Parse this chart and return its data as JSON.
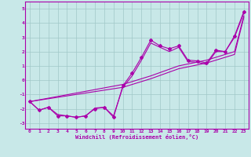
{
  "xlabel": "Windchill (Refroidissement éolien,°C)",
  "bg_color": "#c8e8e8",
  "grid_color": "#a0c8c8",
  "line_color": "#aa00aa",
  "xlim": [
    -0.5,
    23.5
  ],
  "ylim": [
    -3.4,
    5.5
  ],
  "yticks": [
    -3,
    -2,
    -1,
    0,
    1,
    2,
    3,
    4,
    5
  ],
  "xticks": [
    0,
    1,
    2,
    3,
    4,
    5,
    6,
    7,
    8,
    9,
    10,
    11,
    12,
    13,
    14,
    15,
    16,
    17,
    18,
    19,
    20,
    21,
    22,
    23
  ],
  "series": [
    {
      "x": [
        0,
        1,
        2,
        3,
        4,
        5,
        6,
        7,
        8,
        9,
        10,
        11,
        12,
        13,
        14,
        15,
        16,
        17,
        18,
        19,
        20,
        21,
        22,
        23
      ],
      "y": [
        -1.5,
        -2.1,
        -1.9,
        -2.5,
        -2.5,
        -2.6,
        -2.5,
        -2.0,
        -1.9,
        -2.6,
        -0.4,
        0.5,
        1.6,
        2.8,
        2.4,
        2.2,
        2.4,
        1.4,
        1.35,
        1.2,
        2.1,
        2.0,
        3.1,
        4.8
      ],
      "has_markers": true
    },
    {
      "x": [
        0,
        1,
        2,
        3,
        4,
        5,
        6,
        7,
        8,
        9,
        10,
        11,
        12,
        13,
        14,
        15,
        16,
        17,
        18,
        19,
        20,
        21,
        22,
        23
      ],
      "y": [
        -1.5,
        -2.1,
        -1.9,
        -2.4,
        -2.5,
        -2.6,
        -2.5,
        -1.95,
        -1.9,
        -2.5,
        -0.5,
        0.3,
        1.4,
        2.6,
        2.3,
        2.0,
        2.3,
        1.3,
        1.25,
        1.1,
        2.0,
        2.0,
        3.0,
        4.7
      ],
      "has_markers": false
    },
    {
      "x": [
        0,
        10,
        13,
        16,
        19,
        22,
        23
      ],
      "y": [
        -1.5,
        -0.3,
        0.3,
        1.0,
        1.4,
        2.0,
        4.5
      ],
      "has_markers": false
    },
    {
      "x": [
        0,
        10,
        13,
        16,
        19,
        22,
        23
      ],
      "y": [
        -1.5,
        -0.5,
        0.1,
        0.8,
        1.2,
        1.8,
        4.4
      ],
      "has_markers": false
    }
  ]
}
